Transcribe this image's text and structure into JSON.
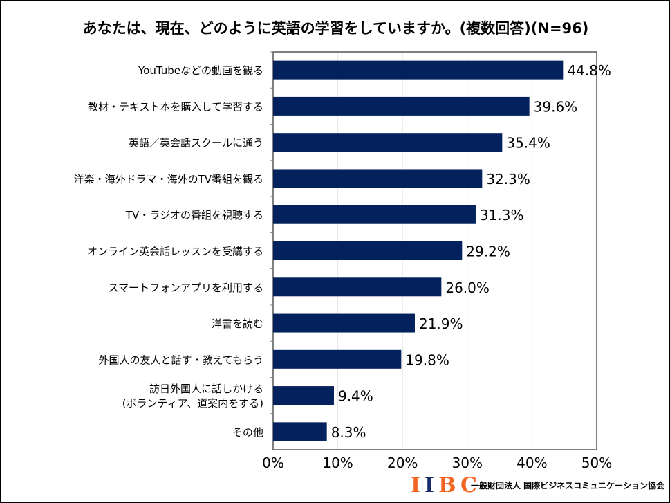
{
  "chart_data": {
    "type": "bar",
    "orientation": "horizontal",
    "title": "あなたは、現在、どのように英語の学習をしていますか。(複数回答)(N=96)",
    "categories": [
      "YouTubeなどの動画を観る",
      "教材・テキスト本を購入して学習する",
      "英語／英会話スクールに通う",
      "洋楽・海外ドラマ・海外のTV番組を観る",
      "TV・ラジオの番組を視聴する",
      "オンライン英会話レッスンを受講する",
      "スマートフォンアプリを利用する",
      "洋書を読む",
      "外国人の友人と話す・教えてもらう",
      "訪日外国人に話しかける\n(ボランティア、道案内をする)",
      "その他"
    ],
    "values": [
      44.8,
      39.6,
      35.4,
      32.3,
      31.3,
      29.2,
      26.0,
      21.9,
      19.8,
      9.4,
      8.3
    ],
    "data_labels": [
      "44.8%",
      "39.6%",
      "35.4%",
      "32.3%",
      "31.3%",
      "29.2%",
      "26.0%",
      "21.9%",
      "19.8%",
      "9.4%",
      "8.3%"
    ],
    "xlim": [
      0,
      50
    ],
    "xticks": [
      "0%",
      "10%",
      "20%",
      "30%",
      "40%",
      "50%"
    ],
    "grid": true,
    "bar_color": "#03215d"
  },
  "footer": {
    "logo": "IIBC",
    "org": "一般財団法人 国際ビジネスコミュニケーション協会",
    "logo_colors": {
      "orange": "#f26522",
      "navy": "#1b2a6b"
    }
  }
}
